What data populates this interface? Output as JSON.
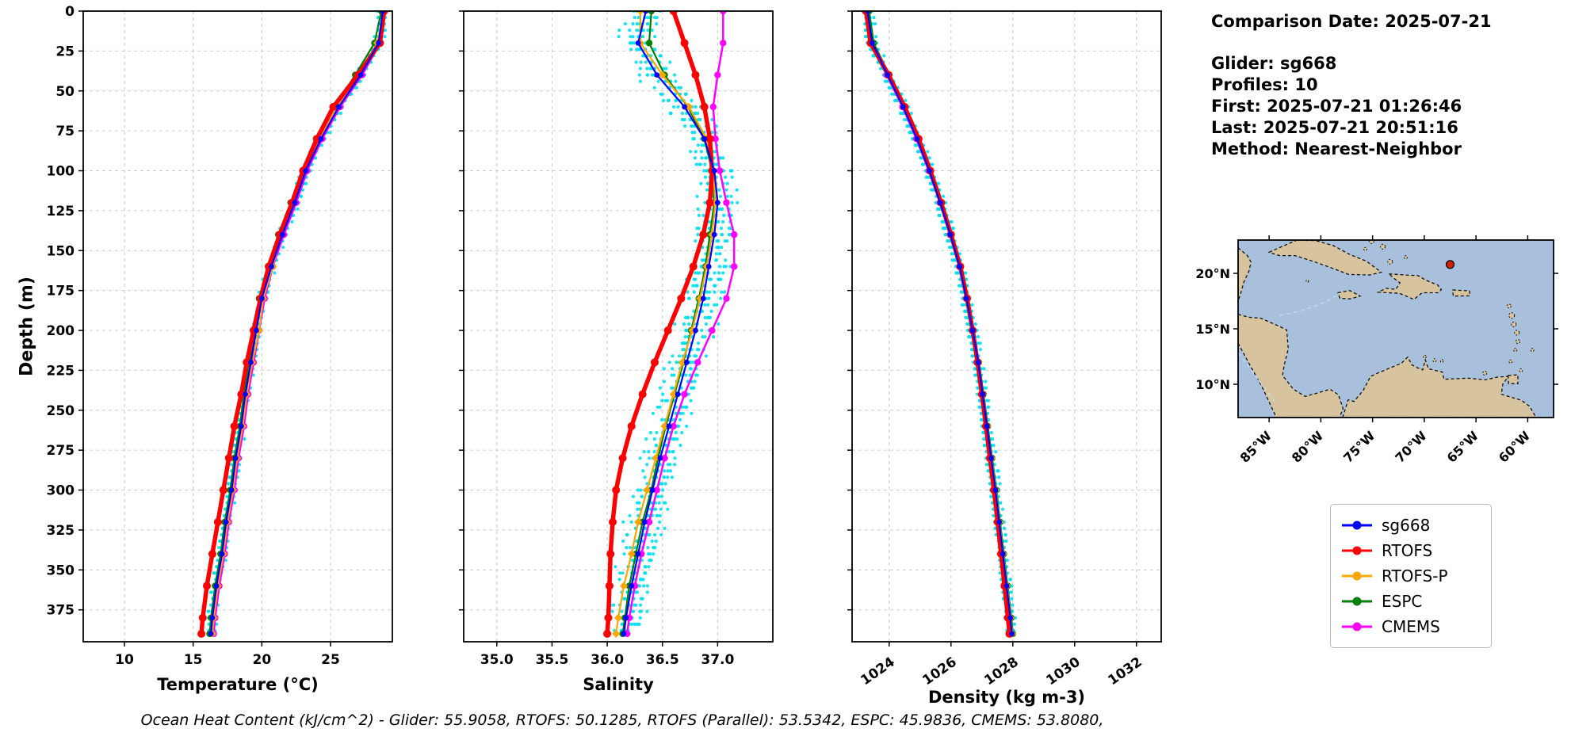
{
  "info_panel": {
    "lines": [
      "Comparison Date: 2025-07-21",
      "",
      "Glider: sg668",
      "Profiles: 10",
      "First: 2025-07-21 01:26:46",
      "Last: 2025-07-21 20:51:16",
      "Method: Nearest-Neighbor"
    ]
  },
  "caption": "Ocean Heat Content (kJ/cm^2) - Glider: 55.9058,  RTOFS: 50.1285,  RTOFS (Parallel): 53.5342,  ESPC: 45.9836,  CMEMS: 53.8080,",
  "legend": {
    "items": [
      {
        "label": "sg668",
        "color": "#0000ff"
      },
      {
        "label": "RTOFS",
        "color": "#ff0000"
      },
      {
        "label": "RTOFS-P",
        "color": "#ffa500"
      },
      {
        "label": "ESPC",
        "color": "#008000"
      },
      {
        "label": "CMEMS",
        "color": "#ff00ff"
      }
    ]
  },
  "map": {
    "extent": {
      "lon_min": -88,
      "lon_max": -57.5,
      "lat_min": 7,
      "lat_max": 23
    },
    "lat_ticks": [
      {
        "value": 20,
        "label": "20°N"
      },
      {
        "value": 15,
        "label": "15°N"
      },
      {
        "value": 10,
        "label": "10°N"
      }
    ],
    "lon_ticks": [
      {
        "value": -85,
        "label": "85°W"
      },
      {
        "value": -80,
        "label": "80°W"
      },
      {
        "value": -75,
        "label": "75°W"
      },
      {
        "value": -70,
        "label": "70°W"
      },
      {
        "value": -65,
        "label": "65°W"
      },
      {
        "value": -60,
        "label": "60°W"
      }
    ],
    "marker": {
      "lon": -67.5,
      "lat": 20.8,
      "color": "#cc2200"
    },
    "ocean_color": "#a8c0dc",
    "land_color": "#d7c49e"
  },
  "chart_data": {
    "type": "line",
    "ylabel": "Depth (m)",
    "ylim": [
      0,
      395
    ],
    "depth_ticks": [
      {
        "value": 0,
        "label": "0"
      },
      {
        "value": 25,
        "label": "25"
      },
      {
        "value": 50,
        "label": "50"
      },
      {
        "value": 75,
        "label": "75"
      },
      {
        "value": 100,
        "label": "100"
      },
      {
        "value": 125,
        "label": "125"
      },
      {
        "value": 150,
        "label": "150"
      },
      {
        "value": 175,
        "label": "175"
      },
      {
        "value": 200,
        "label": "200"
      },
      {
        "value": 225,
        "label": "225"
      },
      {
        "value": 250,
        "label": "250"
      },
      {
        "value": 275,
        "label": "275"
      },
      {
        "value": 300,
        "label": "300"
      },
      {
        "value": 325,
        "label": "325"
      },
      {
        "value": 350,
        "label": "350"
      },
      {
        "value": 375,
        "label": "375"
      }
    ],
    "depths": [
      0,
      20,
      40,
      60,
      80,
      100,
      120,
      140,
      160,
      180,
      200,
      220,
      240,
      260,
      280,
      300,
      320,
      340,
      360,
      380,
      390
    ],
    "panels": [
      {
        "name": "temperature",
        "xlabel": "Temperature (°C)",
        "xlim": [
          7,
          29.5
        ],
        "rotate_xticks": false,
        "xticks": [
          {
            "value": 10,
            "label": "10"
          },
          {
            "value": 15,
            "label": "15"
          },
          {
            "value": 20,
            "label": "20"
          },
          {
            "value": 25,
            "label": "25"
          }
        ],
        "scatter": {
          "name": "glider-raw-profiles",
          "color": "#00dff0",
          "jitter": 0.28,
          "copies": 8
        },
        "series": [
          {
            "name": "sg668",
            "color": "#0000ff",
            "width": 2.2,
            "marker": "circle",
            "msize": 3.4,
            "values": [
              28.8,
              28.5,
              27.2,
              25.6,
              24.3,
              23.2,
              22.4,
              21.5,
              20.7,
              20.0,
              19.6,
              19.2,
              18.8,
              18.5,
              18.1,
              17.8,
              17.4,
              17.1,
              16.7,
              16.4,
              16.3
            ]
          },
          {
            "name": "RTOFS",
            "color": "#ff0000",
            "width": 5.5,
            "marker": "circle",
            "msize": 5.0,
            "values": [
              28.9,
              28.6,
              27.0,
              25.2,
              24.0,
              23.0,
              22.2,
              21.3,
              20.5,
              19.9,
              19.4,
              18.9,
              18.5,
              18.0,
              17.6,
              17.2,
              16.8,
              16.4,
              16.0,
              15.7,
              15.6
            ]
          },
          {
            "name": "RTOFS-P",
            "color": "#ffa500",
            "width": 2.2,
            "marker": "diamond",
            "msize": 5.0,
            "values": [
              28.9,
              28.4,
              27.1,
              25.5,
              24.2,
              23.1,
              22.3,
              21.4,
              20.8,
              20.1,
              19.8,
              19.3,
              18.9,
              18.6,
              18.2,
              17.9,
              17.5,
              17.2,
              16.8,
              16.5,
              16.4
            ]
          },
          {
            "name": "ESPC",
            "color": "#008000",
            "width": 2.2,
            "marker": "circle",
            "msize": 4.2,
            "values": [
              28.7,
              28.2,
              26.8,
              25.3,
              24.0,
              23.0,
              22.1,
              21.2,
              20.5,
              19.8,
              19.5,
              19.1,
              18.7,
              18.4,
              18.0,
              17.7,
              17.3,
              17.0,
              16.6,
              16.3,
              16.2
            ]
          },
          {
            "name": "CMEMS",
            "color": "#ff00ff",
            "width": 2.5,
            "marker": "circle",
            "msize": 4.2,
            "values": [
              28.9,
              28.6,
              27.3,
              25.7,
              24.4,
              23.3,
              22.5,
              21.6,
              20.8,
              20.2,
              19.8,
              19.4,
              19.0,
              18.7,
              18.3,
              18.0,
              17.6,
              17.3,
              16.9,
              16.6,
              16.5
            ]
          }
        ]
      },
      {
        "name": "salinity",
        "xlabel": "Salinity",
        "xlim": [
          34.7,
          37.5
        ],
        "rotate_xticks": false,
        "xticks": [
          {
            "value": 35.0,
            "label": "35.0"
          },
          {
            "value": 35.5,
            "label": "35.5"
          },
          {
            "value": 36.0,
            "label": "36.0"
          },
          {
            "value": 36.5,
            "label": "36.5"
          },
          {
            "value": 37.0,
            "label": "37.0"
          }
        ],
        "scatter": {
          "name": "glider-raw-profiles",
          "color": "#00dff0",
          "jitter": 0.14,
          "copies": 8
        },
        "series": [
          {
            "name": "sg668",
            "color": "#0000ff",
            "width": 2.2,
            "marker": "circle",
            "msize": 3.4,
            "values": [
              36.35,
              36.28,
              36.45,
              36.7,
              36.88,
              36.97,
              37.0,
              36.97,
              36.92,
              36.87,
              36.8,
              36.72,
              36.64,
              36.56,
              36.48,
              36.41,
              36.34,
              36.28,
              36.22,
              36.17,
              36.15
            ]
          },
          {
            "name": "RTOFS",
            "color": "#ff0000",
            "width": 5.5,
            "marker": "circle",
            "msize": 5.0,
            "values": [
              36.6,
              36.7,
              36.8,
              36.88,
              36.93,
              36.95,
              36.93,
              36.87,
              36.78,
              36.67,
              36.55,
              36.43,
              36.32,
              36.22,
              36.14,
              36.08,
              36.05,
              36.03,
              36.02,
              36.01,
              36.0
            ]
          },
          {
            "name": "RTOFS-P",
            "color": "#ffa500",
            "width": 2.2,
            "marker": "diamond",
            "msize": 5.0,
            "values": [
              36.3,
              36.3,
              36.5,
              36.74,
              36.9,
              36.96,
              36.98,
              36.95,
              36.9,
              36.84,
              36.77,
              36.68,
              36.6,
              36.52,
              36.44,
              36.36,
              36.28,
              36.22,
              36.15,
              36.1,
              36.08
            ]
          },
          {
            "name": "ESPC",
            "color": "#008000",
            "width": 2.2,
            "marker": "circle",
            "msize": 4.2,
            "values": [
              36.4,
              36.38,
              36.52,
              36.73,
              36.88,
              36.95,
              36.97,
              36.93,
              36.89,
              36.83,
              36.76,
              36.69,
              36.61,
              36.53,
              36.46,
              36.4,
              36.32,
              36.26,
              36.2,
              36.16,
              36.14
            ]
          },
          {
            "name": "CMEMS",
            "color": "#ff00ff",
            "width": 2.5,
            "marker": "circle",
            "msize": 4.2,
            "values": [
              37.05,
              37.05,
              37.0,
              36.96,
              36.98,
              37.02,
              37.08,
              37.15,
              37.15,
              37.08,
              36.95,
              36.82,
              36.7,
              36.6,
              36.52,
              36.45,
              36.38,
              36.31,
              36.25,
              36.2,
              36.18
            ]
          }
        ]
      },
      {
        "name": "density",
        "xlabel": "Density (kg m-3)",
        "xlim": [
          1022.8,
          1032.8
        ],
        "rotate_xticks": true,
        "xticks": [
          {
            "value": 1024,
            "label": "1024"
          },
          {
            "value": 1026,
            "label": "1026"
          },
          {
            "value": 1028,
            "label": "1028"
          },
          {
            "value": 1030,
            "label": "1030"
          },
          {
            "value": 1032,
            "label": "1032"
          }
        ],
        "scatter": {
          "name": "glider-raw-profiles",
          "color": "#00dff0",
          "jitter": 0.13,
          "copies": 8
        },
        "series": [
          {
            "name": "sg668",
            "color": "#0000ff",
            "width": 2.2,
            "marker": "circle",
            "msize": 3.4,
            "values": [
              1023.3,
              1023.45,
              1023.95,
              1024.45,
              1024.9,
              1025.3,
              1025.65,
              1025.98,
              1026.28,
              1026.5,
              1026.7,
              1026.88,
              1027.02,
              1027.16,
              1027.3,
              1027.44,
              1027.56,
              1027.68,
              1027.8,
              1027.92,
              1027.97
            ]
          },
          {
            "name": "RTOFS",
            "color": "#ff0000",
            "width": 5.5,
            "marker": "circle",
            "msize": 5.0,
            "values": [
              1023.25,
              1023.4,
              1023.98,
              1024.5,
              1024.95,
              1025.33,
              1025.68,
              1026.0,
              1026.3,
              1026.52,
              1026.7,
              1026.86,
              1027.0,
              1027.13,
              1027.26,
              1027.39,
              1027.51,
              1027.62,
              1027.73,
              1027.84,
              1027.89
            ]
          },
          {
            "name": "RTOFS-P",
            "color": "#ffa500",
            "width": 2.2,
            "marker": "diamond",
            "msize": 5.0,
            "values": [
              1023.28,
              1023.44,
              1023.96,
              1024.47,
              1024.92,
              1025.31,
              1025.66,
              1025.99,
              1026.29,
              1026.51,
              1026.71,
              1026.89,
              1027.03,
              1027.17,
              1027.31,
              1027.45,
              1027.57,
              1027.69,
              1027.81,
              1027.93,
              1027.98
            ]
          },
          {
            "name": "ESPC",
            "color": "#008000",
            "width": 2.2,
            "marker": "circle",
            "msize": 4.2,
            "values": [
              1023.35,
              1023.5,
              1024.0,
              1024.5,
              1024.94,
              1025.32,
              1025.67,
              1026.0,
              1026.3,
              1026.52,
              1026.72,
              1026.9,
              1027.05,
              1027.19,
              1027.33,
              1027.47,
              1027.59,
              1027.71,
              1027.83,
              1027.95,
              1028.0
            ]
          },
          {
            "name": "CMEMS",
            "color": "#ff00ff",
            "width": 2.5,
            "marker": "circle",
            "msize": 4.2,
            "values": [
              1023.22,
              1023.38,
              1023.92,
              1024.43,
              1024.88,
              1025.28,
              1025.64,
              1025.97,
              1026.27,
              1026.49,
              1026.69,
              1026.87,
              1027.01,
              1027.15,
              1027.29,
              1027.43,
              1027.55,
              1027.67,
              1027.79,
              1027.91,
              1027.96
            ]
          }
        ]
      }
    ]
  }
}
